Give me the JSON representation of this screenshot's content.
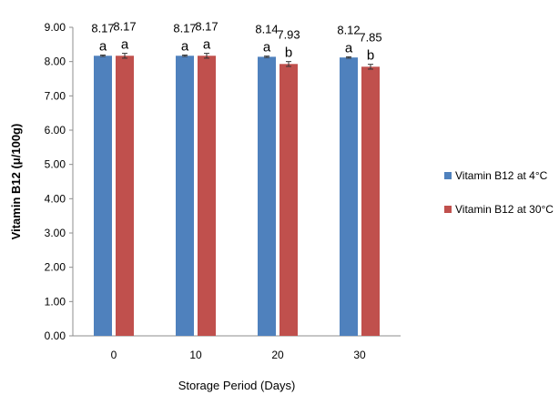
{
  "chart_data": {
    "type": "bar",
    "categories": [
      "0",
      "10",
      "20",
      "30"
    ],
    "series": [
      {
        "name": "Vitamin B12 at 4°C",
        "color": "#4f81bd",
        "values": [
          8.17,
          8.17,
          8.14,
          8.12
        ],
        "errors": [
          0.02,
          0.02,
          0.02,
          0.02
        ],
        "value_labels": [
          "8.17",
          "8.17",
          "8.14",
          "8.12"
        ],
        "sig_labels": [
          "a",
          "a",
          "a",
          "a"
        ]
      },
      {
        "name": "Vitamin B12 at 30°C",
        "color": "#c0504d",
        "values": [
          8.17,
          8.17,
          7.93,
          7.85
        ],
        "errors": [
          0.07,
          0.07,
          0.07,
          0.07
        ],
        "value_labels": [
          "8.17",
          "8.17",
          "7.93",
          "7.85"
        ],
        "sig_labels": [
          "a",
          "a",
          "b",
          "b"
        ]
      }
    ],
    "xlabel": "Storage Period (Days)",
    "ylabel": "Vitamin B12 (μ/100g)",
    "ylim": [
      0,
      9
    ],
    "yticks": [
      "0.00",
      "1.00",
      "2.00",
      "3.00",
      "4.00",
      "5.00",
      "6.00",
      "7.00",
      "8.00",
      "9.00"
    ],
    "grid": false,
    "legend_position": "right"
  }
}
